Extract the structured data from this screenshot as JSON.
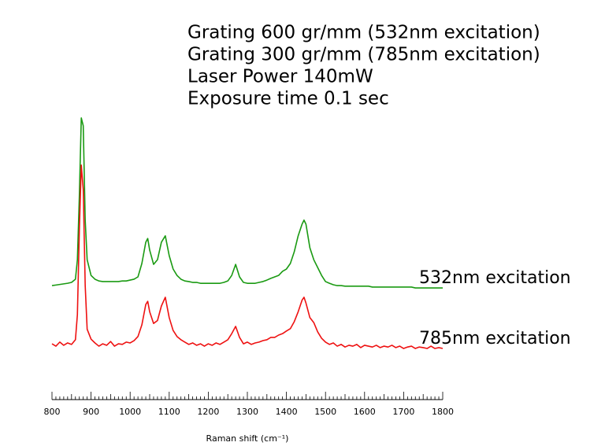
{
  "chart_data": {
    "type": "line",
    "annotations": [
      "Grating 600 gr/mm (532nm excitation)",
      "Grating 300 gr/mm (785nm excitation)",
      "Laser Power 140mW",
      "Exposure time 0.1 sec"
    ],
    "x_label": "Raman shift (cm⁻¹)",
    "x": [
      800,
      810,
      820,
      830,
      840,
      850,
      860,
      865,
      870,
      875,
      880,
      885,
      890,
      900,
      910,
      920,
      930,
      940,
      950,
      960,
      970,
      980,
      990,
      1000,
      1010,
      1020,
      1030,
      1040,
      1045,
      1050,
      1060,
      1070,
      1080,
      1090,
      1100,
      1110,
      1120,
      1130,
      1140,
      1150,
      1160,
      1170,
      1180,
      1190,
      1200,
      1210,
      1220,
      1230,
      1240,
      1250,
      1260,
      1270,
      1280,
      1290,
      1300,
      1310,
      1320,
      1330,
      1340,
      1350,
      1360,
      1370,
      1380,
      1390,
      1400,
      1410,
      1420,
      1430,
      1440,
      1445,
      1450,
      1460,
      1470,
      1480,
      1490,
      1500,
      1510,
      1520,
      1530,
      1540,
      1550,
      1560,
      1570,
      1580,
      1590,
      1600,
      1610,
      1620,
      1630,
      1640,
      1650,
      1660,
      1670,
      1680,
      1690,
      1700,
      1710,
      1720,
      1730,
      1740,
      1750,
      1760,
      1770,
      1780,
      1790,
      1800
    ],
    "series": [
      {
        "name": "532nm excitation",
        "color": "#1a9a12",
        "values": [
          37.0,
          37.2,
          37.4,
          37.6,
          37.8,
          38.1,
          39.2,
          45.9,
          67.6,
          94.6,
          91.9,
          59.5,
          45.9,
          40.5,
          39.2,
          38.6,
          38.4,
          38.4,
          38.4,
          38.4,
          38.4,
          38.6,
          38.6,
          38.9,
          39.2,
          40.0,
          44.6,
          51.9,
          53.2,
          49.2,
          44.3,
          45.9,
          51.9,
          54.1,
          47.3,
          42.7,
          40.5,
          39.2,
          38.6,
          38.4,
          38.1,
          38.1,
          37.8,
          37.8,
          37.8,
          37.8,
          37.8,
          37.8,
          38.1,
          38.6,
          40.5,
          44.3,
          40.0,
          38.1,
          37.8,
          37.8,
          37.8,
          38.1,
          38.4,
          38.9,
          39.5,
          40.0,
          40.5,
          41.9,
          42.7,
          44.6,
          48.6,
          54.1,
          58.1,
          59.5,
          58.1,
          50.0,
          45.9,
          43.2,
          40.5,
          38.4,
          37.8,
          37.3,
          37.0,
          37.0,
          36.8,
          36.8,
          36.8,
          36.8,
          36.8,
          36.8,
          36.8,
          36.5,
          36.5,
          36.5,
          36.5,
          36.5,
          36.5,
          36.5,
          36.5,
          36.5,
          36.5,
          36.5,
          36.2,
          36.2,
          36.2,
          36.2,
          36.2,
          36.2,
          36.2,
          36.2
        ]
      },
      {
        "name": "785nm excitation",
        "color": "#ee1111",
        "values": [
          17.0,
          16.2,
          17.6,
          16.5,
          17.3,
          16.8,
          18.4,
          27.0,
          56.0,
          78.4,
          70.0,
          37.0,
          22.0,
          18.6,
          17.3,
          16.2,
          17.0,
          16.5,
          17.8,
          16.2,
          17.0,
          16.8,
          17.6,
          17.3,
          18.1,
          19.5,
          23.5,
          30.5,
          31.6,
          28.0,
          24.0,
          25.0,
          30.0,
          33.0,
          26.0,
          21.6,
          19.5,
          18.4,
          17.6,
          16.8,
          17.3,
          16.5,
          17.0,
          16.2,
          17.0,
          16.5,
          17.3,
          16.8,
          17.6,
          18.4,
          20.5,
          23.0,
          19.2,
          17.0,
          17.6,
          16.8,
          17.3,
          17.6,
          18.1,
          18.4,
          19.2,
          19.2,
          20.0,
          20.5,
          21.4,
          22.2,
          24.6,
          28.0,
          32.0,
          33.0,
          31.0,
          26.0,
          24.3,
          21.1,
          18.9,
          17.6,
          16.8,
          17.3,
          16.2,
          16.8,
          15.9,
          16.5,
          16.2,
          16.8,
          15.7,
          16.5,
          16.2,
          15.9,
          16.5,
          15.7,
          16.2,
          15.9,
          16.5,
          15.7,
          16.2,
          15.4,
          15.9,
          16.2,
          15.4,
          15.9,
          15.7,
          15.4,
          16.2,
          15.4,
          15.7,
          15.4
        ]
      }
    ],
    "xlim": [
      800,
      1800
    ],
    "xticks": [
      800,
      900,
      1000,
      1100,
      1200,
      1300,
      1400,
      1500,
      1600,
      1700,
      1800
    ],
    "xminorticks": [
      810,
      820,
      830,
      840,
      850,
      860,
      870,
      880,
      890,
      910,
      920,
      930,
      940,
      950,
      960,
      970,
      980,
      990,
      1010,
      1020,
      1030,
      1040,
      1050,
      1060,
      1070,
      1080,
      1090,
      1110,
      1120,
      1130,
      1140,
      1150,
      1160,
      1170,
      1180,
      1190,
      1210,
      1220,
      1230,
      1240,
      1250,
      1260,
      1270,
      1280,
      1290,
      1310,
      1320,
      1330,
      1340,
      1350,
      1360,
      1370,
      1380,
      1390,
      1410,
      1420,
      1430,
      1440,
      1450,
      1460,
      1470,
      1480,
      1490,
      1510,
      1520,
      1530,
      1540,
      1550,
      1560,
      1570,
      1580,
      1590,
      1610,
      1620,
      1630,
      1640,
      1650,
      1660,
      1670,
      1680,
      1690,
      1710,
      1720,
      1730,
      1740,
      1750,
      1760,
      1770,
      1780,
      1790
    ],
    "ylim": [
      0,
      100
    ],
    "grid": false
  }
}
